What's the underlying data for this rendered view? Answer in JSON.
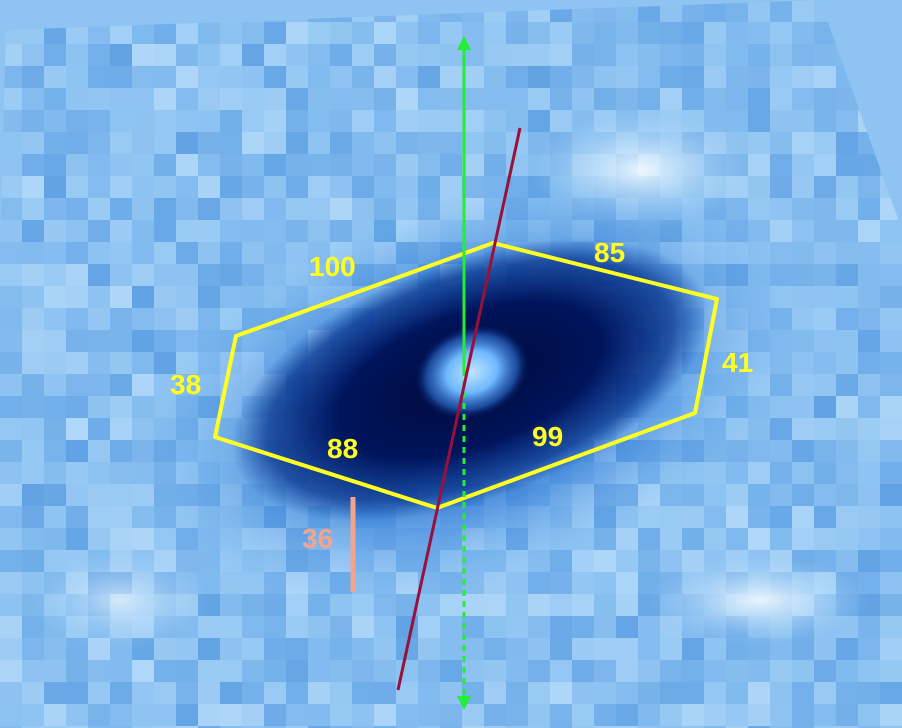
{
  "colors": {
    "background": "#6fb0ee",
    "polygon": "#ffff22",
    "edge_label": "#ffff22",
    "green_line": "#22ee33",
    "dark_red_line": "#99103a",
    "scale_bar": "#f2a48c",
    "scale_label": "#f2a48c"
  },
  "polygon": {
    "edge_labels": {
      "top_left": "100",
      "top_right": "85",
      "left": "38",
      "right": "41",
      "bottom_left": "88",
      "bottom_right": "99"
    }
  },
  "scale_bar": {
    "label": "36"
  }
}
